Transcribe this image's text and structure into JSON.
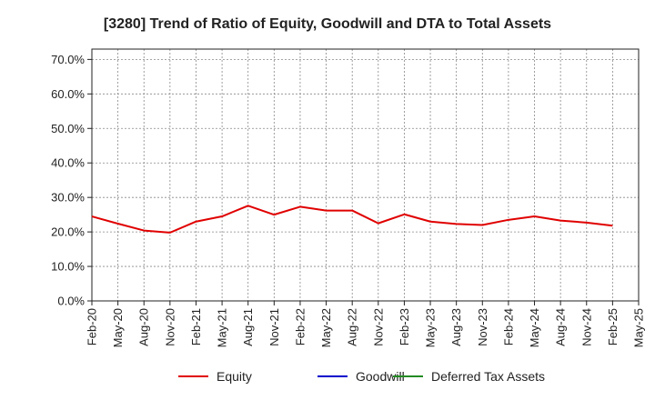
{
  "chart_data": {
    "type": "line",
    "title": "[3280]  Trend of Ratio of Equity, Goodwill and DTA to Total Assets",
    "xlabel": "",
    "ylabel": "",
    "ylim": [
      0,
      73
    ],
    "y_ticks": [
      0,
      10,
      20,
      30,
      40,
      50,
      60,
      70
    ],
    "y_tick_labels": [
      "0.0%",
      "10.0%",
      "20.0%",
      "30.0%",
      "40.0%",
      "50.0%",
      "60.0%",
      "70.0%"
    ],
    "x_tick_labels": [
      "Feb-20",
      "May-20",
      "Aug-20",
      "Nov-20",
      "Feb-21",
      "May-21",
      "Aug-21",
      "Nov-21",
      "Feb-22",
      "May-22",
      "Aug-22",
      "Nov-22",
      "Feb-23",
      "May-23",
      "Aug-23",
      "Nov-23",
      "Feb-24",
      "May-24",
      "Aug-24",
      "Nov-24",
      "Feb-25",
      "May-25"
    ],
    "grid": true,
    "legend_position": "bottom",
    "series": [
      {
        "name": "Equity",
        "color": "#e00000",
        "values": [
          24.5,
          22.4,
          20.4,
          19.8,
          23.0,
          24.5,
          27.6,
          25.0,
          27.3,
          26.2,
          26.2,
          22.5,
          25.1,
          23.0,
          22.3,
          22.0,
          23.5,
          24.5,
          23.3,
          22.7,
          21.8
        ]
      },
      {
        "name": "Goodwill",
        "color": "#0000cc",
        "values": []
      },
      {
        "name": "Deferred Tax Assets",
        "color": "#228b22",
        "values": []
      }
    ]
  }
}
